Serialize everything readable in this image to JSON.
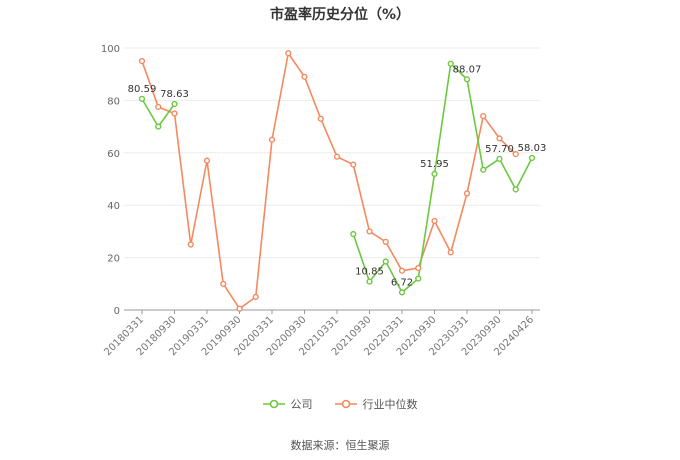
{
  "chart_data": {
    "type": "line",
    "title": "市盈率历史分位（%）",
    "ylim": [
      0,
      100
    ],
    "y_ticks": [
      0,
      20,
      40,
      60,
      80,
      100
    ],
    "grid": true,
    "x": [
      "20180331",
      "20180630",
      "20180930",
      "20181231",
      "20190331",
      "20190630",
      "20190930",
      "20191231",
      "20200331",
      "20200630",
      "20200930",
      "20201231",
      "20210331",
      "20210630",
      "20210930",
      "20211231",
      "20220331",
      "20220630",
      "20220930",
      "20221231",
      "20230331",
      "20230630",
      "20230930",
      "20231231",
      "20240426"
    ],
    "x_tick_labels": [
      "20180331",
      "20180930",
      "20190331",
      "20190930",
      "20200331",
      "20200930",
      "20210331",
      "20210930",
      "20220331",
      "20220930",
      "20230331",
      "20230930",
      "20240426"
    ],
    "series": [
      {
        "name": "公司",
        "color": "#6CC83F",
        "values": [
          80.59,
          70,
          78.63,
          null,
          null,
          null,
          null,
          null,
          null,
          null,
          null,
          null,
          null,
          29,
          10.85,
          18.5,
          6.72,
          12,
          51.95,
          94,
          88.07,
          53.5,
          57.7,
          46,
          58.03
        ],
        "value_labels": [
          "80.59",
          null,
          "78.63",
          null,
          null,
          null,
          null,
          null,
          null,
          null,
          null,
          null,
          null,
          null,
          "10.85",
          null,
          "6.72",
          null,
          "51.95",
          null,
          "88.07",
          null,
          "57.70",
          null,
          "58.03"
        ]
      },
      {
        "name": "行业中位数",
        "color": "#F4895F",
        "values": [
          95,
          77.5,
          75,
          25,
          57,
          10,
          0.5,
          5,
          65,
          98,
          89,
          73,
          58.5,
          55.5,
          30,
          26,
          15,
          16,
          34,
          22,
          44.5,
          74,
          65.5,
          59.5,
          null
        ],
        "value_labels": []
      }
    ],
    "legend_position": "bottom-center"
  },
  "footer": {
    "source": "数据来源：恒生聚源"
  }
}
